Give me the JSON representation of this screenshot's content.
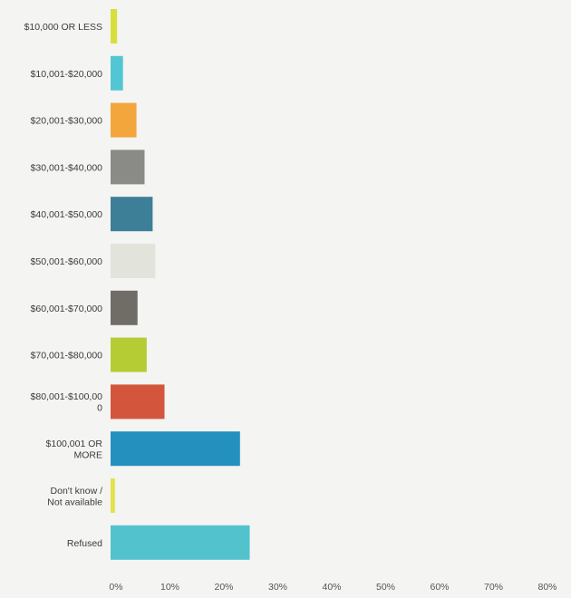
{
  "chart_data": {
    "type": "bar",
    "orientation": "horizontal",
    "categories": [
      "$10,000 OR LESS",
      "$10,001-$20,000",
      "$20,001-$30,000",
      "$30,001-$40,000",
      "$40,001-$50,000",
      "$50,001-$60,000",
      "$60,001-$70,000",
      "$70,001-$80,000",
      "$80,001-$100,000",
      "$100,001 OR MORE",
      "Don't know / Not available",
      "Refused"
    ],
    "category_lines": [
      [
        "$10,000 OR LESS"
      ],
      [
        "$10,001-$20,000"
      ],
      [
        "$20,001-$30,000"
      ],
      [
        "$30,001-$40,000"
      ],
      [
        "$40,001-$50,000"
      ],
      [
        "$50,001-$60,000"
      ],
      [
        "$60,001-$70,000"
      ],
      [
        "$70,001-$80,000"
      ],
      [
        "$80,001-$100,00",
        "0"
      ],
      [
        "$100,001 OR",
        "MORE"
      ],
      [
        "Don't know /",
        "Not available"
      ],
      [
        "Refused"
      ]
    ],
    "values": [
      1.2,
      2.3,
      4.8,
      6.3,
      7.8,
      8.3,
      5.0,
      6.7,
      10.0,
      24.0,
      0.8,
      25.8
    ],
    "colors": [
      "#d8df3c",
      "#52c6d3",
      "#f2a63b",
      "#8a8b86",
      "#3d7f97",
      "#e2e4dc",
      "#706d67",
      "#b6cc35",
      "#d3563c",
      "#2490bd",
      "#e0e34a",
      "#52c2cd"
    ],
    "x_ticks": [
      "0%",
      "10%",
      "20%",
      "30%",
      "40%",
      "50%",
      "60%",
      "70%",
      "80%"
    ],
    "xlim": [
      0,
      80
    ],
    "unit": "%",
    "title": "",
    "xlabel": "",
    "ylabel": "",
    "grid": false,
    "legend": "none"
  }
}
